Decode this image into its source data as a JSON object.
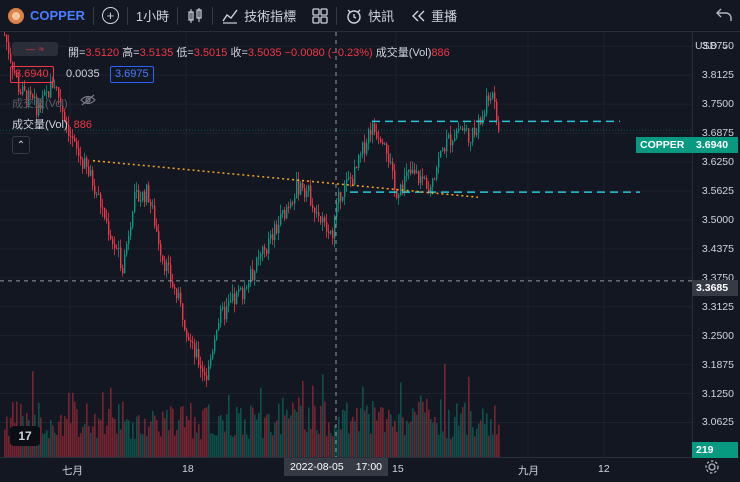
{
  "toolbar": {
    "symbol": "COPPER",
    "add_icon": "plus-circle-icon",
    "interval": "1小時",
    "chart_type_icon": "candles-icon",
    "indicators_label": "技術指標",
    "templates_icon": "grid-icon",
    "alert_label": "快訊",
    "replay_label": "重播",
    "undo_icon": "undo-icon"
  },
  "legend": {
    "open_label": "開=",
    "open": "3.5120",
    "high_label": "高=",
    "high": "3.5135",
    "low_label": "低=",
    "low": "3.5015",
    "close_label": "收=",
    "close": "3.5035",
    "change": "−0.0080 (−0.23%)",
    "volume_label": "成交量(Vol)",
    "volume": "886",
    "bid": "3.6940",
    "spread": "0.0035",
    "ask": "3.6975",
    "vol_hidden_label": "成交量(Vol)",
    "vol_pane_label": "成交量(Vol)",
    "vol_pane_value": "886"
  },
  "price_axis": {
    "currency": "USD",
    "ticks": [
      "3.8750",
      "3.8125",
      "3.7500",
      "3.6875",
      "3.6250",
      "3.5625",
      "3.5000",
      "3.4375",
      "3.3750",
      "3.3125",
      "3.2500",
      "3.1875",
      "3.1250",
      "3.0625"
    ],
    "current_price_tag": "COPPER",
    "current_price": "3.6940",
    "crosshair_price": "3.3685",
    "volume_tag": "219"
  },
  "time_axis": {
    "ticks": [
      "七月",
      "18",
      "15",
      "九月",
      "12"
    ],
    "crosshair_date": "2022-08-05",
    "crosshair_time": "17:00"
  },
  "colors": {
    "background": "#131722",
    "up": "#089981",
    "down": "#f23645",
    "accent": "#2962ff",
    "horizontal_lines": "#26c6da",
    "trendline": "#f5a623"
  },
  "chart_data": {
    "type": "candlestick",
    "symbol": "COPPER",
    "timeframe": "1小時",
    "ylim": [
      3.03,
      3.92
    ],
    "price_path": [
      [
        0,
        3.9
      ],
      [
        0.03,
        3.78
      ],
      [
        0.07,
        3.74
      ],
      [
        0.1,
        3.8
      ],
      [
        0.14,
        3.66
      ],
      [
        0.18,
        3.58
      ],
      [
        0.22,
        3.45
      ],
      [
        0.24,
        3.4
      ],
      [
        0.26,
        3.54
      ],
      [
        0.29,
        3.56
      ],
      [
        0.32,
        3.42
      ],
      [
        0.36,
        3.3
      ],
      [
        0.38,
        3.22
      ],
      [
        0.41,
        3.16
      ],
      [
        0.43,
        3.28
      ],
      [
        0.46,
        3.32
      ],
      [
        0.49,
        3.36
      ],
      [
        0.52,
        3.42
      ],
      [
        0.55,
        3.48
      ],
      [
        0.58,
        3.55
      ],
      [
        0.6,
        3.58
      ],
      [
        0.62,
        3.55
      ],
      [
        0.64,
        3.5
      ],
      [
        0.66,
        3.46
      ],
      [
        0.68,
        3.56
      ],
      [
        0.71,
        3.6
      ],
      [
        0.74,
        3.7
      ],
      [
        0.77,
        3.68
      ],
      [
        0.79,
        3.56
      ],
      [
        0.82,
        3.6
      ],
      [
        0.86,
        3.58
      ],
      [
        0.89,
        3.66
      ],
      [
        0.92,
        3.7
      ],
      [
        0.95,
        3.68
      ],
      [
        0.97,
        3.73
      ],
      [
        0.985,
        3.78
      ],
      [
        1,
        3.69
      ]
    ],
    "horizontal_levels": [
      3.713,
      3.56
    ],
    "trendline": {
      "from": [
        3.628,
        "七月"
      ],
      "to": [
        3.549,
        "2022-08-17"
      ]
    },
    "crosshair_price": 3.3685,
    "last_price": 3.694
  }
}
